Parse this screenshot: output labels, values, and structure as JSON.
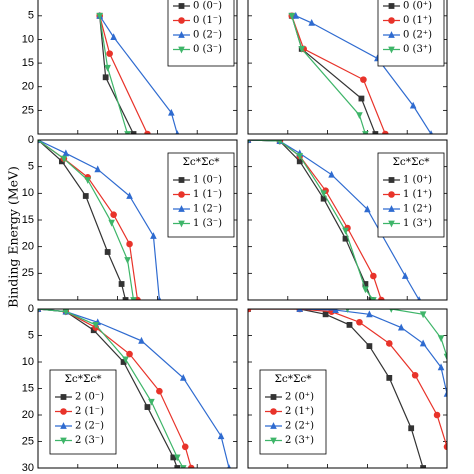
{
  "figure": {
    "ylabel": "Binding Energy (MeV)"
  },
  "styles": {
    "colors": [
      "#333333",
      "#e8332a",
      "#2f6bd0",
      "#3eb569"
    ],
    "markers": [
      "square",
      "circle",
      "triangle-up",
      "triangle-down"
    ]
  },
  "chart_data": [
    {
      "type": "line",
      "panel": "row1-left",
      "title": "",
      "legend_title": "",
      "ylim": [
        0,
        30
      ],
      "yticks": [
        5,
        10,
        15,
        20,
        25
      ],
      "legend": "top-right",
      "series": [
        {
          "name": "0 (0⁻)",
          "x": [
            0.31,
            0.34,
            0.48
          ],
          "y": [
            5.0,
            18.0,
            30.0
          ]
        },
        {
          "name": "0 (1⁻)",
          "x": [
            0.31,
            0.36,
            0.55
          ],
          "y": [
            5.0,
            13.0,
            30.0
          ]
        },
        {
          "name": "0 (2⁻)",
          "x": [
            0.31,
            0.38,
            0.67,
            0.7
          ],
          "y": [
            5.0,
            9.5,
            25.5,
            30.0
          ]
        },
        {
          "name": "0 (3⁻)",
          "x": [
            0.31,
            0.35,
            0.45
          ],
          "y": [
            5.0,
            16.0,
            30.0
          ]
        }
      ]
    },
    {
      "type": "line",
      "panel": "row1-right",
      "title": "",
      "legend_title": "",
      "ylim": [
        0,
        30
      ],
      "yticks": [
        5,
        10,
        15,
        20,
        25
      ],
      "legend": "top-right",
      "series": [
        {
          "name": "0 (0⁺)",
          "x": [
            0.22,
            0.27,
            0.57,
            0.64
          ],
          "y": [
            5.0,
            12.0,
            22.5,
            30.0
          ]
        },
        {
          "name": "0 (1⁺)",
          "x": [
            0.22,
            0.28,
            0.58,
            0.69
          ],
          "y": [
            5.0,
            12.0,
            18.5,
            30.0
          ]
        },
        {
          "name": "0 (2⁺)",
          "x": [
            0.24,
            0.32,
            0.65,
            0.83,
            0.92
          ],
          "y": [
            5.0,
            6.5,
            14.0,
            24.0,
            30.0
          ]
        },
        {
          "name": "0 (3⁺)",
          "x": [
            0.22,
            0.27,
            0.56,
            0.59
          ],
          "y": [
            5.0,
            12.0,
            26.0,
            30.0
          ]
        }
      ]
    },
    {
      "type": "line",
      "panel": "row2-left",
      "title": "",
      "legend_title": "Σc*Σ̄c*",
      "ylim": [
        0,
        30
      ],
      "yticks": [
        0,
        5,
        10,
        15,
        20,
        25
      ],
      "legend": "top-right",
      "series": [
        {
          "name": "1 (0⁻)",
          "x": [
            0.0,
            0.12,
            0.24,
            0.35,
            0.42,
            0.44
          ],
          "y": [
            0.0,
            4.0,
            10.5,
            21.0,
            27.0,
            30.0
          ]
        },
        {
          "name": "1 (1⁻)",
          "x": [
            0.0,
            0.13,
            0.25,
            0.38,
            0.46,
            0.5
          ],
          "y": [
            0.0,
            3.5,
            7.0,
            14.0,
            19.5,
            30.0
          ]
        },
        {
          "name": "1 (2⁻)",
          "x": [
            0.0,
            0.14,
            0.3,
            0.46,
            0.58,
            0.61
          ],
          "y": [
            0.0,
            2.5,
            5.5,
            10.5,
            18.0,
            30.0
          ]
        },
        {
          "name": "1 (3⁻)",
          "x": [
            0.0,
            0.13,
            0.25,
            0.37,
            0.45,
            0.48
          ],
          "y": [
            0.0,
            3.5,
            7.5,
            15.5,
            22.5,
            30.0
          ]
        }
      ]
    },
    {
      "type": "line",
      "panel": "row2-right",
      "title": "",
      "legend_title": "Σc*Σc*",
      "ylim": [
        0,
        30
      ],
      "yticks": [
        0,
        5,
        10,
        15,
        20,
        25
      ],
      "legend": "top-right",
      "series": [
        {
          "name": "1 (0⁺)",
          "x": [
            0.0,
            0.16,
            0.26,
            0.38,
            0.49,
            0.59,
            0.62
          ],
          "y": [
            0.0,
            0.2,
            4.0,
            11.0,
            18.5,
            27.0,
            30.0
          ]
        },
        {
          "name": "1 (1⁺)",
          "x": [
            0.0,
            0.16,
            0.26,
            0.39,
            0.5,
            0.63,
            0.67
          ],
          "y": [
            0.0,
            0.2,
            3.0,
            9.5,
            16.5,
            25.5,
            30.0
          ]
        },
        {
          "name": "1 (2⁺)",
          "x": [
            0.0,
            0.16,
            0.26,
            0.42,
            0.6,
            0.79,
            0.86
          ],
          "y": [
            0.0,
            0.2,
            2.5,
            6.5,
            13.0,
            25.5,
            30.0
          ]
        },
        {
          "name": "1 (3⁺)",
          "x": [
            0.0,
            0.16,
            0.26,
            0.38,
            0.49,
            0.59,
            0.63
          ],
          "y": [
            0.0,
            0.2,
            3.0,
            10.0,
            17.0,
            28.0,
            30.0
          ]
        }
      ]
    },
    {
      "type": "line",
      "panel": "row3-left",
      "title": "",
      "legend_title": "Σc*Σ̄c*",
      "ylim": [
        0,
        30
      ],
      "yticks": [
        0,
        5,
        10,
        15,
        20,
        25,
        30
      ],
      "legend": "bottom-left",
      "series": [
        {
          "name": "2 (0⁻)",
          "x": [
            0.0,
            0.14,
            0.28,
            0.43,
            0.55,
            0.68,
            0.7
          ],
          "y": [
            0.0,
            0.5,
            4.0,
            10.0,
            18.5,
            28.0,
            30.0
          ]
        },
        {
          "name": "2 (1⁻)",
          "x": [
            0.0,
            0.14,
            0.29,
            0.46,
            0.61,
            0.74,
            0.77
          ],
          "y": [
            0.0,
            0.5,
            3.5,
            8.5,
            15.5,
            26.0,
            30.0
          ]
        },
        {
          "name": "2 (2⁻)",
          "x": [
            0.0,
            0.14,
            0.3,
            0.52,
            0.73,
            0.92,
            0.96
          ],
          "y": [
            0.0,
            0.5,
            2.5,
            6.0,
            13.0,
            24.0,
            30.0
          ]
        },
        {
          "name": "2 (3⁻)",
          "x": [
            0.0,
            0.14,
            0.29,
            0.44,
            0.57,
            0.7,
            0.73
          ],
          "y": [
            0.0,
            0.5,
            3.0,
            9.5,
            17.5,
            28.0,
            30.0
          ]
        }
      ]
    },
    {
      "type": "line",
      "panel": "row3-right",
      "title": "",
      "legend_title": "Σc*Σc*",
      "ylim": [
        0,
        30
      ],
      "yticks": [
        0,
        5,
        10,
        15,
        20,
        25,
        30
      ],
      "legend": "bottom-left",
      "series": [
        {
          "name": "2 (0⁺)",
          "x": [
            0.0,
            0.26,
            0.39,
            0.51,
            0.61,
            0.71,
            0.82,
            0.88
          ],
          "y": [
            0.0,
            0.0,
            1.0,
            3.0,
            7.0,
            13.0,
            22.5,
            30.0
          ]
        },
        {
          "name": "2 (1⁺)",
          "x": [
            0.0,
            0.26,
            0.42,
            0.56,
            0.71,
            0.84,
            0.95,
            1.0
          ],
          "y": [
            0.0,
            0.0,
            0.5,
            2.5,
            6.5,
            12.5,
            20.0,
            26.0
          ]
        },
        {
          "name": "2 (2⁺)",
          "x": [
            0.26,
            0.44,
            0.61,
            0.77,
            0.88,
            0.97,
            1.0
          ],
          "y": [
            0.0,
            0.2,
            1.0,
            3.5,
            6.5,
            11.0,
            16.0
          ]
        },
        {
          "name": "2 (3⁺)",
          "x": [
            0.5,
            0.72,
            0.88,
            0.97,
            1.0
          ],
          "y": [
            0.0,
            0.0,
            1.0,
            5.5,
            9.0
          ]
        }
      ]
    }
  ]
}
